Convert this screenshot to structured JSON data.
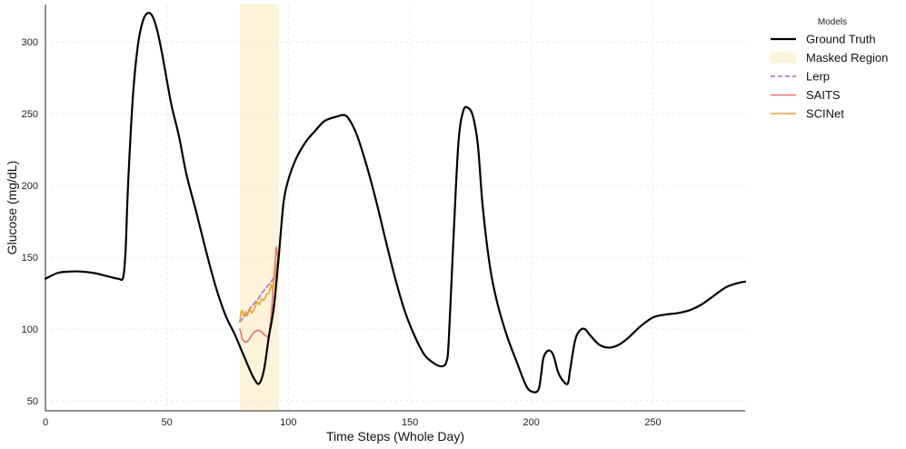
{
  "chart_data": {
    "type": "line",
    "title": "",
    "xlabel": "Time Steps (Whole Day)",
    "ylabel": "Glucose (mg/dL)",
    "xlim": [
      0,
      288
    ],
    "ylim": [
      43,
      326
    ],
    "x_ticks": [
      0,
      50,
      100,
      150,
      200,
      250
    ],
    "y_ticks": [
      50,
      100,
      150,
      200,
      250,
      300
    ],
    "grid": true,
    "legend": {
      "title": "Models",
      "placement": "outside-top-right"
    },
    "masked_region": {
      "label": "Masked Region",
      "x_start": 80,
      "x_end": 96,
      "color": "#fdf3d8"
    },
    "series": [
      {
        "name": "Ground Truth",
        "color": "#000000",
        "style": "solid",
        "width": 2.2,
        "x": [
          0,
          5,
          10,
          15,
          20,
          25,
          30,
          32,
          33,
          34,
          36,
          38,
          40,
          42,
          44,
          46,
          48,
          50,
          52,
          55,
          58,
          62,
          66,
          70,
          74,
          78,
          80,
          82,
          84,
          86,
          88,
          90,
          92,
          94,
          96,
          98,
          100,
          103,
          107,
          111,
          115,
          120,
          123,
          125,
          128,
          132,
          136,
          140,
          144,
          148,
          152,
          156,
          160,
          163,
          165,
          166,
          168,
          170,
          172,
          174,
          176,
          178,
          180,
          183,
          186,
          190,
          194,
          198,
          201,
          203,
          204,
          205,
          207,
          209,
          211,
          213,
          215,
          216,
          218,
          220,
          222,
          224,
          228,
          232,
          236,
          240,
          245,
          250,
          255,
          260,
          265,
          270,
          275,
          280,
          285,
          288
        ],
        "y": [
          135,
          139,
          140,
          140,
          139,
          137,
          135,
          136,
          155,
          200,
          262,
          297,
          314,
          320,
          318,
          308,
          292,
          273,
          255,
          234,
          208,
          182,
          155,
          130,
          110,
          96,
          88,
          80,
          72,
          65,
          62,
          72,
          95,
          115,
          150,
          188,
          204,
          218,
          230,
          238,
          245,
          248,
          249,
          246,
          236,
          215,
          190,
          162,
          135,
          112,
          95,
          82,
          76,
          74,
          77,
          92,
          165,
          230,
          252,
          254,
          248,
          228,
          185,
          143,
          118,
          95,
          77,
          60,
          56,
          58,
          68,
          80,
          85,
          82,
          70,
          64,
          62,
          72,
          92,
          99,
          100,
          96,
          89,
          87,
          89,
          94,
          102,
          108,
          110,
          111,
          113,
          117,
          123,
          129,
          132,
          133
        ]
      },
      {
        "name": "Lerp",
        "color": "#b07fd6",
        "style": "dashed",
        "width": 1.8,
        "x": [
          80,
          81,
          82,
          83,
          84,
          85,
          86,
          87,
          88,
          89,
          90,
          91,
          92,
          93,
          94,
          95,
          96
        ],
        "y": [
          105,
          107,
          109,
          111,
          114,
          116,
          118,
          120,
          122,
          125,
          127,
          129,
          131,
          133,
          136,
          138,
          140
        ]
      },
      {
        "name": "SAITS",
        "color": "#e8726a",
        "style": "solid",
        "width": 1.6,
        "x": [
          80,
          80.5,
          81,
          82,
          83,
          84,
          85,
          86,
          87,
          88,
          89,
          90,
          91,
          92,
          93,
          94,
          94.5,
          95,
          96
        ],
        "y": [
          100,
          97,
          93,
          91,
          91,
          93,
          96,
          98,
          99,
          99,
          98,
          96,
          95,
          94,
          110,
          135,
          145,
          157,
          146
        ]
      },
      {
        "name": "SCINet",
        "color": "#f0a030",
        "style": "solid",
        "width": 1.6,
        "x": [
          80,
          80.5,
          81,
          81.5,
          82,
          82.5,
          83,
          84,
          85,
          86,
          87,
          88,
          89,
          90,
          91,
          92,
          93,
          93.5,
          94,
          95,
          96
        ],
        "y": [
          105,
          112,
          113,
          109,
          111,
          112,
          109,
          114,
          111,
          114,
          119,
          117,
          121,
          120,
          124,
          125,
          131,
          127,
          132,
          142,
          153
        ]
      }
    ],
    "legend_entries": [
      "Ground Truth",
      "Masked Region",
      "Lerp",
      "SAITS",
      "SCINet"
    ]
  }
}
